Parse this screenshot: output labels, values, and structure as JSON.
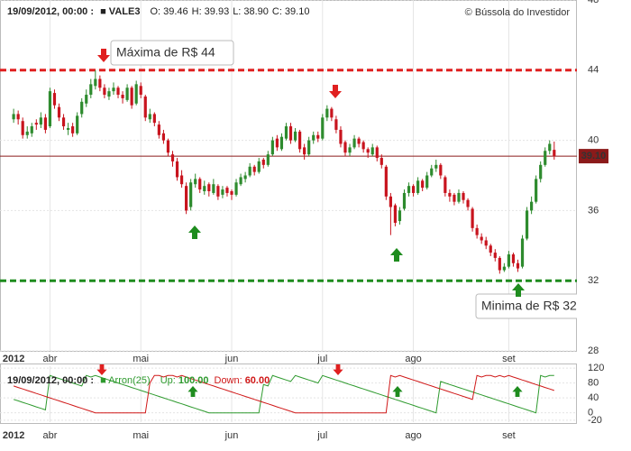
{
  "chart_data": [
    {
      "type": "candlestick",
      "header": {
        "date": "19/09/2012, 00:00 :",
        "symbol": "VALE3",
        "fields": [
          {
            "label": "O:",
            "value": "39.46"
          },
          {
            "label": "H:",
            "value": "39.93"
          },
          {
            "label": "L:",
            "value": "38.90"
          },
          {
            "label": "C:",
            "value": "39.10"
          }
        ]
      },
      "copyright": "© Bússola do Investidor",
      "up_color": "#2e8b2e",
      "down_color": "#c8141e",
      "ohlc": [
        [
          41.2,
          41.8,
          41.0,
          41.5
        ],
        [
          41.5,
          41.7,
          40.9,
          41.2
        ],
        [
          41.1,
          41.3,
          40.1,
          40.3
        ],
        [
          40.3,
          40.8,
          40.1,
          40.5
        ],
        [
          40.4,
          41.0,
          40.2,
          40.8
        ],
        [
          41.0,
          41.2,
          40.6,
          40.9
        ],
        [
          40.9,
          41.6,
          40.7,
          41.3
        ],
        [
          41.3,
          41.5,
          40.4,
          40.6
        ],
        [
          40.8,
          43.0,
          40.7,
          42.8
        ],
        [
          42.7,
          42.9,
          41.8,
          42.0
        ],
        [
          41.9,
          42.1,
          41.1,
          41.3
        ],
        [
          41.3,
          41.5,
          40.6,
          40.8
        ],
        [
          40.6,
          41.0,
          40.3,
          40.7
        ],
        [
          40.8,
          41.0,
          40.2,
          40.4
        ],
        [
          40.4,
          41.6,
          40.3,
          41.4
        ],
        [
          41.5,
          42.4,
          41.3,
          42.2
        ],
        [
          42.1,
          42.9,
          41.9,
          42.6
        ],
        [
          42.6,
          43.5,
          42.4,
          43.2
        ],
        [
          43.1,
          44.0,
          42.9,
          43.5
        ],
        [
          43.5,
          43.7,
          42.8,
          43.0
        ],
        [
          43.0,
          43.2,
          42.4,
          42.6
        ],
        [
          42.5,
          43.0,
          42.3,
          42.8
        ],
        [
          42.8,
          43.3,
          42.6,
          43.0
        ],
        [
          43.0,
          43.1,
          42.4,
          42.6
        ],
        [
          42.6,
          42.8,
          42.1,
          42.4
        ],
        [
          42.3,
          43.2,
          42.2,
          43.0
        ],
        [
          43.0,
          43.1,
          41.8,
          42.0
        ],
        [
          42.1,
          43.4,
          42.0,
          43.2
        ],
        [
          43.1,
          43.3,
          42.4,
          42.6
        ],
        [
          42.5,
          42.6,
          41.1,
          41.3
        ],
        [
          41.2,
          41.8,
          41.0,
          41.5
        ],
        [
          41.5,
          41.6,
          40.8,
          41.0
        ],
        [
          40.9,
          41.1,
          40.1,
          40.3
        ],
        [
          40.4,
          40.6,
          39.8,
          40.0
        ],
        [
          40.0,
          40.1,
          39.1,
          39.3
        ],
        [
          39.2,
          39.4,
          38.5,
          38.8
        ],
        [
          38.8,
          39.0,
          37.7,
          37.9
        ],
        [
          38.0,
          38.3,
          37.3,
          37.5
        ],
        [
          37.4,
          37.6,
          35.8,
          36.0
        ],
        [
          36.2,
          37.8,
          36.0,
          37.6
        ],
        [
          37.5,
          38.1,
          37.3,
          37.8
        ],
        [
          37.8,
          37.9,
          37.0,
          37.2
        ],
        [
          37.1,
          37.7,
          36.9,
          37.4
        ],
        [
          37.5,
          37.6,
          36.8,
          37.1
        ],
        [
          37.0,
          37.8,
          36.9,
          37.5
        ],
        [
          37.4,
          37.5,
          36.6,
          36.8
        ],
        [
          36.9,
          37.4,
          36.7,
          37.2
        ],
        [
          37.3,
          37.4,
          36.8,
          37.0
        ],
        [
          37.1,
          37.2,
          36.6,
          36.9
        ],
        [
          36.9,
          37.8,
          36.8,
          37.6
        ],
        [
          37.5,
          38.1,
          37.4,
          37.9
        ],
        [
          37.8,
          38.2,
          37.6,
          38.0
        ],
        [
          38.0,
          38.7,
          37.9,
          38.5
        ],
        [
          38.5,
          38.6,
          38.0,
          38.2
        ],
        [
          38.2,
          39.0,
          38.1,
          38.8
        ],
        [
          38.9,
          39.0,
          38.4,
          38.6
        ],
        [
          38.6,
          39.4,
          38.5,
          39.2
        ],
        [
          39.2,
          40.2,
          39.1,
          40.0
        ],
        [
          40.1,
          40.3,
          39.4,
          39.6
        ],
        [
          39.5,
          40.4,
          39.4,
          40.2
        ],
        [
          40.1,
          41.0,
          40.0,
          40.8
        ],
        [
          40.8,
          41.0,
          39.8,
          40.0
        ],
        [
          40.0,
          40.7,
          39.9,
          40.5
        ],
        [
          40.5,
          40.6,
          39.3,
          39.5
        ],
        [
          39.6,
          39.8,
          38.9,
          39.2
        ],
        [
          39.2,
          40.2,
          39.1,
          40.0
        ],
        [
          40.0,
          40.5,
          39.8,
          40.3
        ],
        [
          40.3,
          40.5,
          39.9,
          40.1
        ],
        [
          40.1,
          41.5,
          40.0,
          41.3
        ],
        [
          41.3,
          42.0,
          41.1,
          41.8
        ],
        [
          41.8,
          41.9,
          41.1,
          41.3
        ],
        [
          41.2,
          41.4,
          40.4,
          40.6
        ],
        [
          40.6,
          40.8,
          39.6,
          39.8
        ],
        [
          39.9,
          40.0,
          39.1,
          39.3
        ],
        [
          39.3,
          39.8,
          39.1,
          39.6
        ],
        [
          39.6,
          40.3,
          39.5,
          40.1
        ],
        [
          40.1,
          40.2,
          39.6,
          39.8
        ],
        [
          39.9,
          40.0,
          39.3,
          39.5
        ],
        [
          39.5,
          39.6,
          39.0,
          39.3
        ],
        [
          39.2,
          39.8,
          39.1,
          39.6
        ],
        [
          39.6,
          39.7,
          38.8,
          39.0
        ],
        [
          39.0,
          39.2,
          38.4,
          38.6
        ],
        [
          38.5,
          38.6,
          36.6,
          36.8
        ],
        [
          36.8,
          37.0,
          34.6,
          36.2
        ],
        [
          36.3,
          36.4,
          35.1,
          35.3
        ],
        [
          35.4,
          36.2,
          35.2,
          36.0
        ],
        [
          36.1,
          37.2,
          36.0,
          37.0
        ],
        [
          37.0,
          37.6,
          36.8,
          37.4
        ],
        [
          37.4,
          37.5,
          36.8,
          37.0
        ],
        [
          37.0,
          37.9,
          36.9,
          37.7
        ],
        [
          37.7,
          37.8,
          37.1,
          37.3
        ],
        [
          37.3,
          38.2,
          37.2,
          38.0
        ],
        [
          38.0,
          38.6,
          37.9,
          38.4
        ],
        [
          38.4,
          38.9,
          38.2,
          38.6
        ],
        [
          38.6,
          38.7,
          37.8,
          38.0
        ],
        [
          37.9,
          38.0,
          36.8,
          37.0
        ],
        [
          37.0,
          37.2,
          36.5,
          36.8
        ],
        [
          36.9,
          37.0,
          36.3,
          36.5
        ],
        [
          36.5,
          37.2,
          36.4,
          37.0
        ],
        [
          37.0,
          37.1,
          36.4,
          36.6
        ],
        [
          36.6,
          36.7,
          36.0,
          36.2
        ],
        [
          36.1,
          36.2,
          34.8,
          35.0
        ],
        [
          35.0,
          35.2,
          34.4,
          34.6
        ],
        [
          34.5,
          34.7,
          34.1,
          34.3
        ],
        [
          34.3,
          34.5,
          33.8,
          34.0
        ],
        [
          34.0,
          34.1,
          33.4,
          33.6
        ],
        [
          33.6,
          33.8,
          33.1,
          33.3
        ],
        [
          33.3,
          33.4,
          32.4,
          32.6
        ],
        [
          32.6,
          33.0,
          32.5,
          32.8
        ],
        [
          32.8,
          33.7,
          32.7,
          33.5
        ],
        [
          33.5,
          33.6,
          32.8,
          33.0
        ],
        [
          33.0,
          33.2,
          32.5,
          32.7
        ],
        [
          32.8,
          34.6,
          32.7,
          34.4
        ],
        [
          34.4,
          36.2,
          34.3,
          36.0
        ],
        [
          36.0,
          36.8,
          35.8,
          36.5
        ],
        [
          36.5,
          38.0,
          36.4,
          37.8
        ],
        [
          37.8,
          38.8,
          37.6,
          38.6
        ],
        [
          38.6,
          39.6,
          38.5,
          39.4
        ],
        [
          39.4,
          40.0,
          39.2,
          39.8
        ],
        [
          39.46,
          39.93,
          38.9,
          39.1
        ]
      ],
      "xticks": [
        {
          "value": 0,
          "label": "2012"
        },
        {
          "value": 8,
          "label": "abr"
        },
        {
          "value": 28,
          "label": "mai"
        },
        {
          "value": 48,
          "label": "jun"
        },
        {
          "value": 68,
          "label": "jul"
        },
        {
          "value": 88,
          "label": "ago"
        },
        {
          "value": 109,
          "label": "set"
        }
      ],
      "xlim": [
        -3,
        124
      ],
      "ylim": [
        28,
        48
      ],
      "yticks": [
        28,
        32,
        36,
        40,
        44,
        48
      ],
      "grid": true,
      "levels": [
        {
          "value": 44,
          "color": "#e02020",
          "style": "dashed"
        },
        {
          "value": 32,
          "color": "#1e8c1e",
          "style": "dashed"
        },
        {
          "value": 39.1,
          "color": "#8b1a1a",
          "style": "solid",
          "label": "39.10"
        }
      ],
      "annotations": [
        {
          "text": "Máxima de R$ 44",
          "color": "#d01818"
        },
        {
          "text": "Minima de R$ 32",
          "color": "#1e6e1e"
        }
      ]
    },
    {
      "type": "line",
      "header": {
        "date": "19/09/2012, 00:00 :",
        "indicator": "Arron(25)"
      },
      "series": [
        {
          "name": "Up:",
          "last_label": "100.00",
          "color": "#2e9a2e",
          "values": [
            36,
            32,
            28,
            24,
            20,
            16,
            12,
            8,
            100,
            96,
            92,
            88,
            84,
            80,
            76,
            72,
            100,
            96,
            100,
            96,
            92,
            88,
            84,
            80,
            76,
            72,
            68,
            64,
            60,
            56,
            52,
            48,
            44,
            40,
            36,
            32,
            28,
            24,
            20,
            16,
            12,
            8,
            4,
            0,
            0,
            0,
            0,
            0,
            0,
            0,
            0,
            0,
            0,
            0,
            0,
            76,
            72,
            100,
            96,
            92,
            88,
            84,
            100,
            96,
            92,
            88,
            84,
            80,
            100,
            96,
            92,
            88,
            84,
            80,
            76,
            72,
            68,
            64,
            60,
            56,
            52,
            48,
            44,
            40,
            36,
            32,
            28,
            24,
            20,
            16,
            12,
            8,
            4,
            0,
            84,
            80,
            76,
            72,
            68,
            64,
            60,
            56,
            52,
            48,
            44,
            40,
            36,
            32,
            28,
            24,
            20,
            16,
            12,
            8,
            4,
            0,
            100,
            96,
            100,
            100
          ]
        },
        {
          "name": "Down:",
          "last_label": "60.00",
          "color": "#d01818",
          "values": [
            72,
            68,
            64,
            60,
            56,
            52,
            48,
            44,
            40,
            36,
            32,
            28,
            24,
            20,
            16,
            12,
            8,
            4,
            0,
            0,
            0,
            0,
            0,
            0,
            0,
            0,
            0,
            0,
            0,
            0,
            80,
            100,
            100,
            96,
            100,
            100,
            96,
            100,
            96,
            92,
            88,
            84,
            80,
            76,
            72,
            68,
            64,
            60,
            56,
            52,
            48,
            44,
            40,
            36,
            32,
            28,
            24,
            20,
            16,
            12,
            8,
            4,
            0,
            0,
            0,
            0,
            0,
            0,
            0,
            0,
            0,
            0,
            0,
            0,
            0,
            0,
            0,
            0,
            0,
            0,
            0,
            0,
            0,
            100,
            96,
            100,
            96,
            92,
            88,
            84,
            80,
            76,
            72,
            68,
            64,
            60,
            56,
            52,
            48,
            44,
            40,
            36,
            100,
            96,
            100,
            100,
            96,
            100,
            96,
            100,
            96,
            92,
            88,
            84,
            80,
            76,
            72,
            68,
            64,
            60
          ]
        }
      ],
      "xticks": [
        {
          "value": 0,
          "label": "2012"
        },
        {
          "value": 8,
          "label": "abr"
        },
        {
          "value": 28,
          "label": "mai"
        },
        {
          "value": 48,
          "label": "jun"
        },
        {
          "value": 68,
          "label": "jul"
        },
        {
          "value": 88,
          "label": "ago"
        },
        {
          "value": 109,
          "label": "set"
        }
      ],
      "xlim": [
        -3,
        124
      ],
      "ylim": [
        -25,
        125
      ],
      "yticks": [
        -20,
        0,
        40,
        80,
        120
      ],
      "grid": true
    }
  ]
}
